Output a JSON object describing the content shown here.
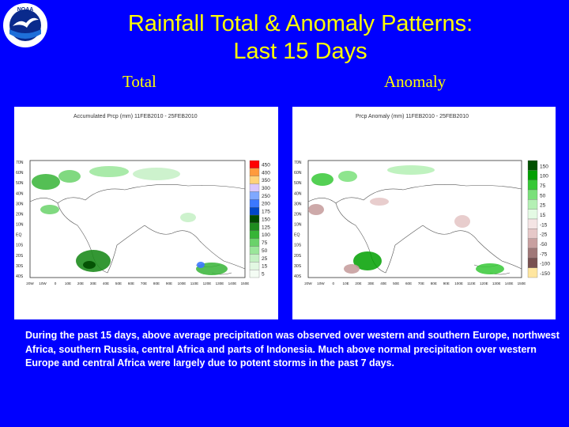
{
  "logo": {
    "text": "NOAA",
    "colors": {
      "ring": "#ffffff",
      "sky": "#0a2a8c",
      "bird": "#ffffff",
      "sea": "#1e6fd9"
    }
  },
  "title": {
    "line1": "Rainfall Total & Anomaly Patterns:",
    "line2": "Last 15 Days"
  },
  "panels": {
    "total": {
      "label": "Total",
      "map_header": "Accumulated Prcp (mm) 11FEB2010 - 25FEB2010",
      "legend": [
        "450",
        "400",
        "350",
        "300",
        "250",
        "200",
        "175",
        "150",
        "125",
        "100",
        "75",
        "50",
        "25",
        "15",
        "5"
      ],
      "legend_colors": [
        "#ff0000",
        "#ff9a3c",
        "#ffd27a",
        "#d9c7ff",
        "#7fa8ff",
        "#3c78ff",
        "#0046c8",
        "#004b00",
        "#1e8c1e",
        "#36b436",
        "#6ad26a",
        "#9ae69a",
        "#c4f0c4",
        "#e2f8e2",
        "#f4fcf4"
      ]
    },
    "anomaly": {
      "label": "Anomaly",
      "map_header": "Prcp Anomaly (mm) 11FEB2010 - 25FEB2010",
      "legend": [
        "150",
        "100",
        "75",
        "50",
        "25",
        "15",
        "-15",
        "-25",
        "-50",
        "-75",
        "-100",
        "-150"
      ],
      "legend_colors": [
        "#005000",
        "#00a000",
        "#36c836",
        "#7ae07a",
        "#b4f0b4",
        "#e4fae4",
        "#f4e4e4",
        "#e6c8c8",
        "#c8a0a0",
        "#a07878",
        "#785050",
        "#ffe6a0"
      ]
    }
  },
  "axes": {
    "lat_labels": [
      "70N",
      "60N",
      "50N",
      "40N",
      "30N",
      "20N",
      "10N",
      "EQ",
      "10S",
      "20S",
      "30S",
      "40S"
    ],
    "lon_labels": [
      "20W",
      "10W",
      "0",
      "10E",
      "20E",
      "30E",
      "40E",
      "50E",
      "60E",
      "70E",
      "80E",
      "90E",
      "100E",
      "110E",
      "120E",
      "130E",
      "140E",
      "150E"
    ]
  },
  "caption": "During the past 15 days, above average precipitation was observed over western and southern Europe, northwest Africa, southern Russia, central Africa and parts of Indonesia. Much above normal precipitation over western Europe and central Africa were largely due to potent storms in the past 7 days."
}
